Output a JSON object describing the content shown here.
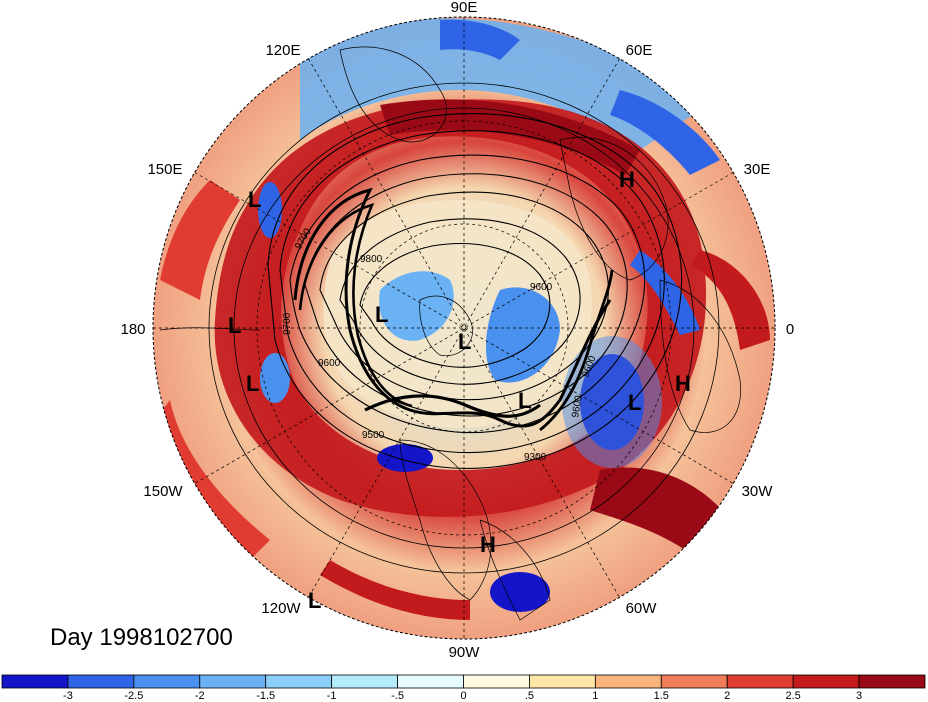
{
  "title": "Day 1998102700",
  "longitude_labels": [
    {
      "text": "90E",
      "lon_deg": 90
    },
    {
      "text": "60E",
      "lon_deg": 60
    },
    {
      "text": "120E",
      "lon_deg": 120
    },
    {
      "text": "30E",
      "lon_deg": 30
    },
    {
      "text": "150E",
      "lon_deg": 150
    },
    {
      "text": "0",
      "lon_deg": 0
    },
    {
      "text": "180",
      "lon_deg": 180
    },
    {
      "text": "30W",
      "lon_deg": -30
    },
    {
      "text": "150W",
      "lon_deg": -150
    },
    {
      "text": "60W",
      "lon_deg": -60
    },
    {
      "text": "120W",
      "lon_deg": -120
    },
    {
      "text": "90W",
      "lon_deg": -90
    }
  ],
  "contour_labels": [
    "9700",
    "9800",
    "9600",
    "9500",
    "9300",
    "9600",
    "9600",
    "9700",
    "9600"
  ],
  "pressure_systems": [
    {
      "type": "L",
      "label": "L"
    },
    {
      "type": "H",
      "label": "H"
    },
    {
      "type": "L",
      "label": "L"
    },
    {
      "type": "L",
      "label": "L"
    },
    {
      "type": "L",
      "label": "L"
    },
    {
      "type": "L",
      "label": "L"
    },
    {
      "type": "L",
      "label": "L"
    },
    {
      "type": "L",
      "label": "L"
    },
    {
      "type": "H",
      "label": "H"
    },
    {
      "type": "H",
      "label": "H"
    },
    {
      "type": "L",
      "label": "L"
    }
  ],
  "colorbar": {
    "tick_labels": [
      "-3",
      "-2.5",
      "-2",
      "-1.5",
      "-1",
      "-.5",
      "0",
      ".5",
      "1",
      "1.5",
      "2",
      "2.5",
      "3"
    ],
    "colors": [
      "#1414c8",
      "#2f64e6",
      "#4a90ee",
      "#6ab2f4",
      "#8ccff8",
      "#b4ecfc",
      "#e6fbff",
      "#fffbe0",
      "#fde6a6",
      "#f8b47c",
      "#f07e5a",
      "#e03c32",
      "#c31a1e",
      "#9a0a16"
    ]
  }
}
